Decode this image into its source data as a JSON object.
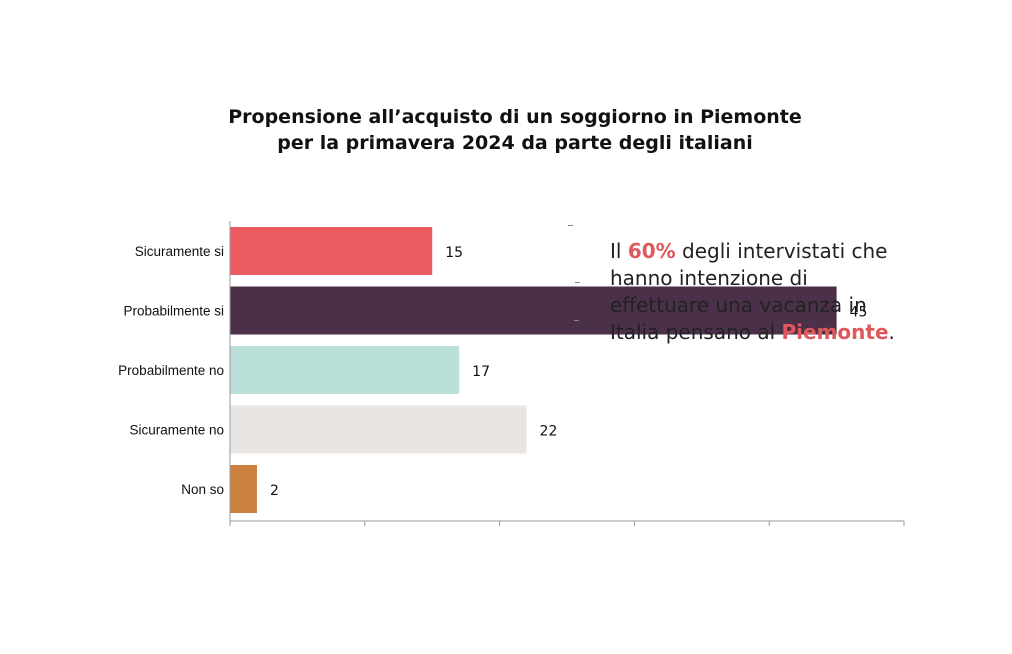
{
  "title": {
    "line1": "Propensione all’acquisto di un soggiorno in Piemonte",
    "line2": "per la primavera 2024 da parte degli italiani"
  },
  "callout": {
    "line1_pre": "Il ",
    "line1_highlight": "60%",
    "line1_post": " degli intervistati che",
    "line2": "hanno intenzione di",
    "line3": "effettuare una vacanza in",
    "line4_pre": "Italia pensano al ",
    "line4_highlight": "Piemonte",
    "line4_post": ".",
    "highlight_color": "#e0585c"
  },
  "chart_data": {
    "type": "bar",
    "orientation": "horizontal",
    "categories": [
      "Sicuramente si",
      "Probabilmente si",
      "Probabilmente no",
      "Sicuramente no",
      "Non so"
    ],
    "values": [
      15,
      45,
      17,
      22,
      2
    ],
    "colors": [
      "#ec5b62",
      "#4b3049",
      "#b9dfd8",
      "#e9e5e3",
      "#cc8040"
    ],
    "xlim": [
      0,
      50
    ],
    "grid": false,
    "legend": "none"
  }
}
